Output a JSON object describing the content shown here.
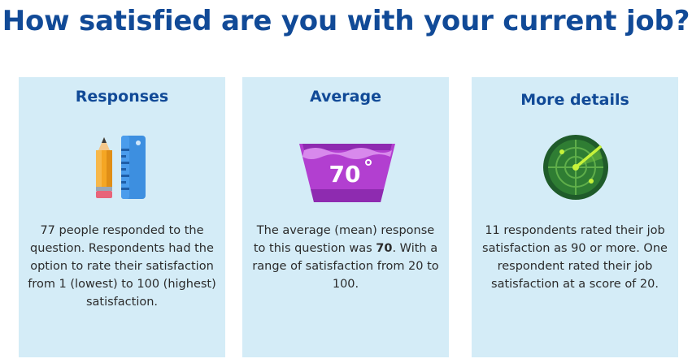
{
  "title": "How satisfied are you with your current job?",
  "cards": [
    {
      "title": "Responses",
      "icon": "pencil-ruler-icon",
      "text": "77 people responded to the question. Respondents had the option to rate their satisfaction from 1 (lowest) to 100 (highest) satisfaction."
    },
    {
      "title": "Average",
      "icon": "wash-basin-70-icon",
      "icon_label": "70",
      "text_before": "The average (mean) response to this question was ",
      "text_bold": "70",
      "text_after": ". With a range of satisfaction from 20 to 100."
    },
    {
      "title": "More details",
      "icon": "radar-icon",
      "text": "11 respondents rated their job satisfaction as 90 or more. One respondent rated their job satisfaction at a score of 20."
    }
  ],
  "colors": {
    "title": "#114a97",
    "card_background": "#d4ecf7",
    "text": "#2b2b2b"
  }
}
